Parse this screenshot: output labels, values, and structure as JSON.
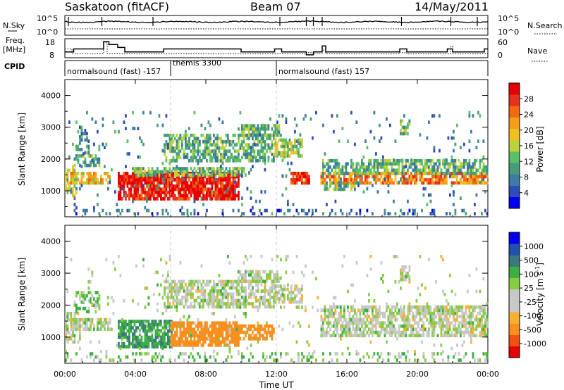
{
  "header": {
    "station": "Saskatoon (fitACF)",
    "beam": "Beam 07",
    "date": "14/May/2011"
  },
  "summary": {
    "left_labels": {
      "nsky": "N.Sky",
      "freq": "Freq.",
      "freq_unit": "[MHz]",
      "cpid": "CPID"
    },
    "right_labels": {
      "nsearch": "N.Search",
      "nave": "Nave"
    },
    "nsky_ticks": [
      "10^5",
      "10^0"
    ],
    "nsearch_ticks": [
      "10^5",
      "10^0"
    ],
    "freq_ticks": [
      "18",
      "8"
    ],
    "nave_ticks": [
      "60",
      "0"
    ],
    "cpid_segments": [
      {
        "start_hour": 0.0,
        "end_hour": 6.0,
        "label": "normalsound (fast) -157"
      },
      {
        "start_hour": 6.0,
        "end_hour": 12.0,
        "label": "themis 3300"
      },
      {
        "start_hour": 12.0,
        "end_hour": 24.0,
        "label": "normalsound (fast) 157"
      }
    ],
    "freq_trace": [
      [
        0,
        11
      ],
      [
        0.5,
        11
      ],
      [
        0.5,
        13
      ],
      [
        2.2,
        13
      ],
      [
        2.2,
        18
      ],
      [
        2.5,
        18
      ],
      [
        2.5,
        16
      ],
      [
        3.0,
        16
      ],
      [
        3.0,
        14
      ],
      [
        3.4,
        14
      ],
      [
        3.4,
        11
      ],
      [
        5.6,
        11
      ],
      [
        5.6,
        13
      ],
      [
        10.0,
        13
      ],
      [
        10.0,
        11
      ],
      [
        11.9,
        11
      ],
      [
        11.9,
        13
      ],
      [
        12.3,
        13
      ],
      [
        12.3,
        11
      ],
      [
        13.7,
        11
      ],
      [
        13.7,
        9
      ],
      [
        14.1,
        9
      ],
      [
        14.1,
        11
      ],
      [
        14.6,
        11
      ],
      [
        14.6,
        15
      ],
      [
        14.8,
        15
      ],
      [
        14.8,
        11
      ],
      [
        19.0,
        11
      ],
      [
        19.0,
        13
      ],
      [
        19.4,
        13
      ],
      [
        19.4,
        11
      ],
      [
        21.7,
        11
      ],
      [
        21.7,
        13
      ],
      [
        22.0,
        13
      ],
      [
        22.0,
        11
      ],
      [
        23.8,
        11
      ],
      [
        23.8,
        13
      ],
      [
        24,
        13
      ]
    ],
    "nave_trace": [
      [
        0,
        30
      ],
      [
        0.4,
        30
      ],
      [
        0.4,
        10
      ],
      [
        2.2,
        10
      ],
      [
        2.2,
        55
      ],
      [
        2.4,
        55
      ],
      [
        2.4,
        10
      ],
      [
        13.7,
        10
      ],
      [
        13.7,
        15
      ],
      [
        14.1,
        15
      ],
      [
        14.1,
        10
      ],
      [
        14.6,
        10
      ],
      [
        14.6,
        25
      ],
      [
        14.8,
        25
      ],
      [
        14.8,
        10
      ],
      [
        19.0,
        10
      ],
      [
        19.0,
        15
      ],
      [
        19.4,
        15
      ],
      [
        19.4,
        10
      ],
      [
        21.9,
        10
      ],
      [
        21.9,
        40
      ],
      [
        22.0,
        40
      ],
      [
        22.0,
        10
      ],
      [
        24,
        10
      ]
    ],
    "nsky_level": 10000,
    "nsearch_level": 10000
  },
  "chart_data": [
    {
      "type": "heatmap",
      "parameter": "Power",
      "ylabel": "Slant Range [km]",
      "xlabel": "Time UT",
      "ylim": [
        180,
        4500
      ],
      "yticks": [
        "1000",
        "2000",
        "3000",
        "4000"
      ],
      "colorbar": {
        "label": "Power [dB]",
        "ticks": [
          "28",
          "24",
          "20",
          "16",
          "12",
          "8",
          "4"
        ],
        "range": [
          0,
          30
        ],
        "colors": [
          "#0000ee",
          "#2c4db8",
          "#3d7aa4",
          "#479b7a",
          "#5abf66",
          "#bcd13a",
          "#f0c020",
          "#f89c1c",
          "#f06a10",
          "#e83020",
          "#e60000"
        ]
      },
      "echo_regions": [
        {
          "t0": 0.0,
          "t1": 0.7,
          "r0": 800,
          "r1": 1700,
          "value": 14,
          "density": 0.55
        },
        {
          "t0": 0.3,
          "t1": 2.6,
          "r0": 1200,
          "r1": 1550,
          "value": 18,
          "density": 0.75
        },
        {
          "t0": 0.5,
          "t1": 2.0,
          "r0": 1750,
          "r1": 2350,
          "value": 10,
          "density": 0.5
        },
        {
          "t0": 0.8,
          "t1": 1.3,
          "r0": 2450,
          "r1": 3000,
          "value": 8,
          "density": 0.45
        },
        {
          "t0": 3.0,
          "t1": 9.8,
          "r0": 700,
          "r1": 1500,
          "value": 28,
          "density": 0.85
        },
        {
          "t0": 3.8,
          "t1": 10.2,
          "r0": 1450,
          "r1": 1700,
          "value": 12,
          "density": 0.7
        },
        {
          "t0": 5.6,
          "t1": 11.8,
          "r0": 1900,
          "r1": 2700,
          "value": 11,
          "density": 0.6
        },
        {
          "t0": 9.8,
          "t1": 12.2,
          "r0": 2700,
          "r1": 3050,
          "value": 12,
          "density": 0.75
        },
        {
          "t0": 11.9,
          "t1": 13.4,
          "r0": 2050,
          "r1": 2600,
          "value": 14,
          "density": 0.7
        },
        {
          "t0": 12.8,
          "t1": 13.8,
          "r0": 1200,
          "r1": 1500,
          "value": 26,
          "density": 0.8
        },
        {
          "t0": 14.5,
          "t1": 24.0,
          "r0": 1200,
          "r1": 1500,
          "value": 22,
          "density": 0.75
        },
        {
          "t0": 14.5,
          "t1": 24.0,
          "r0": 1500,
          "r1": 1950,
          "value": 11,
          "density": 0.6
        },
        {
          "t0": 14.7,
          "t1": 16.8,
          "r0": 1000,
          "r1": 1200,
          "value": 12,
          "density": 0.55
        },
        {
          "t0": 19.0,
          "t1": 19.6,
          "r0": 2750,
          "r1": 3200,
          "value": 12,
          "density": 0.7
        },
        {
          "t0": 0.0,
          "t1": 24.0,
          "r0": 230,
          "r1": 420,
          "value": 6,
          "density": 0.22
        },
        {
          "t0": 0.0,
          "t1": 24.0,
          "r0": 420,
          "r1": 3500,
          "value": 8,
          "density": 0.04
        }
      ]
    },
    {
      "type": "heatmap",
      "parameter": "Velocity",
      "ylabel": "Slant Range [km]",
      "xlabel": "Time UT",
      "ylim": [
        180,
        4500
      ],
      "yticks": [
        "1000",
        "2000",
        "3000",
        "4000"
      ],
      "xticks": [
        "00:00",
        "04:00",
        "08:00",
        "12:00",
        "16:00",
        "20:00",
        "00:00"
      ],
      "xlim_hours": [
        0,
        24
      ],
      "colorbar": {
        "label": "Velocity [m s^-1]",
        "ticks": [
          "1000",
          "500",
          "100",
          "25",
          "-25",
          "-100",
          "-500",
          "-1000"
        ],
        "range": [
          -1200,
          1200
        ],
        "colors": [
          "#e60000",
          "#f05010",
          "#f89020",
          "#f8b030",
          "#c8c8c8",
          "#c8c8c8",
          "#88cc44",
          "#3cb044",
          "#3a7a7a",
          "#2050b0",
          "#0000ee"
        ]
      },
      "echo_regions": [
        {
          "t0": 0.0,
          "t1": 0.8,
          "r0": 800,
          "r1": 1700,
          "value": 0,
          "density": 0.55
        },
        {
          "t0": 0.3,
          "t1": 2.6,
          "r0": 1200,
          "r1": 1550,
          "value": 0,
          "density": 0.75
        },
        {
          "t0": 0.5,
          "t1": 2.0,
          "r0": 1750,
          "r1": 2350,
          "value": 60,
          "density": 0.5
        },
        {
          "t0": 3.0,
          "t1": 6.0,
          "r0": 650,
          "r1": 1500,
          "value": 150,
          "density": 0.8
        },
        {
          "t0": 6.0,
          "t1": 9.8,
          "r0": 700,
          "r1": 1400,
          "value": -250,
          "density": 0.8
        },
        {
          "t0": 9.8,
          "t1": 11.8,
          "r0": 900,
          "r1": 1300,
          "value": -300,
          "density": 0.6
        },
        {
          "t0": 5.6,
          "t1": 11.8,
          "r0": 1900,
          "r1": 2700,
          "value": 0,
          "density": 0.6
        },
        {
          "t0": 9.8,
          "t1": 12.2,
          "r0": 2700,
          "r1": 3050,
          "value": 0,
          "density": 0.7
        },
        {
          "t0": 11.9,
          "t1": 13.4,
          "r0": 2050,
          "r1": 2600,
          "value": -10,
          "density": 0.7
        },
        {
          "t0": 14.5,
          "t1": 24.0,
          "r0": 1000,
          "r1": 1950,
          "value": 0,
          "density": 0.7
        },
        {
          "t0": 19.0,
          "t1": 19.6,
          "r0": 2750,
          "r1": 3200,
          "value": 0,
          "density": 0.7
        },
        {
          "t0": 0.0,
          "t1": 24.0,
          "r0": 230,
          "r1": 500,
          "value": 40,
          "density": 0.25
        },
        {
          "t0": 0.0,
          "t1": 24.0,
          "r0": 500,
          "r1": 3500,
          "value": 0,
          "density": 0.04
        }
      ]
    }
  ]
}
